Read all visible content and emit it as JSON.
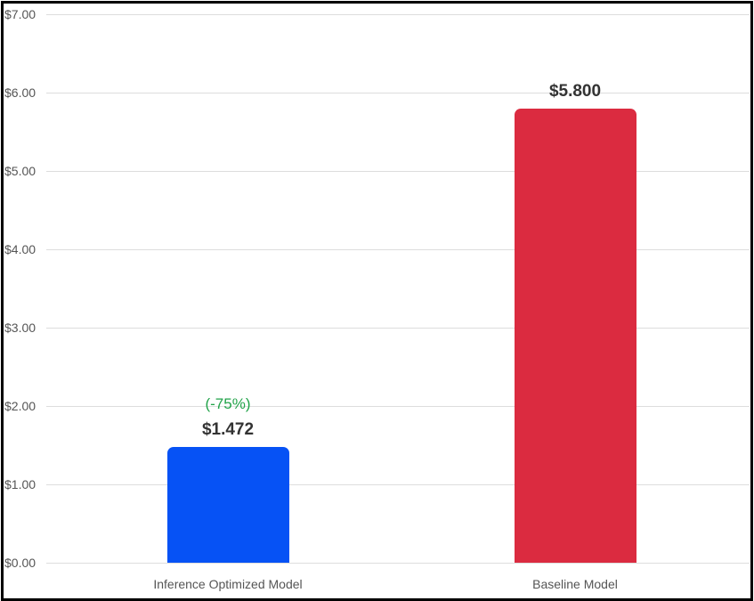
{
  "chart_data": {
    "type": "bar",
    "title": "",
    "xlabel": "",
    "ylabel": "",
    "categories": [
      "Inference Optimized Model",
      "Baseline Model"
    ],
    "values": [
      1.472,
      5.8
    ],
    "value_labels": [
      "$1.472",
      "$5.800"
    ],
    "annotations": [
      {
        "category": "Inference Optimized Model",
        "text": "(-75%)",
        "color": "#22a34a"
      }
    ],
    "colors": [
      "#0652f5",
      "#db2b40"
    ],
    "ylim": [
      0,
      7
    ],
    "yticks": [
      "$0.00",
      "$1.00",
      "$2.00",
      "$3.00",
      "$4.00",
      "$5.00",
      "$6.00",
      "$7.00"
    ],
    "grid": true,
    "legend": null
  }
}
